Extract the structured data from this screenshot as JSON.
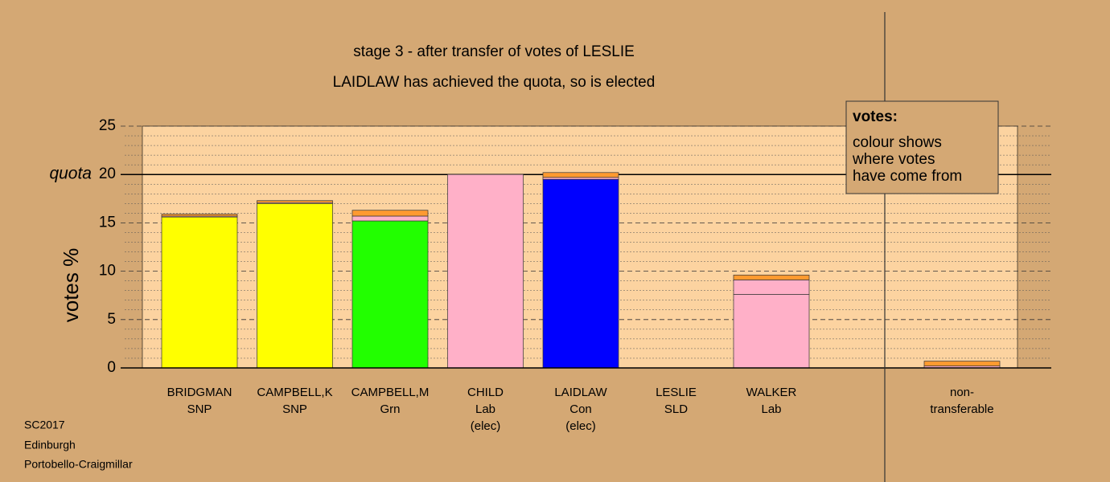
{
  "chart_data": {
    "type": "stacked_bar",
    "title": "stage 3 - after transfer of votes of LESLIE",
    "subtitle": "LAIDLAW has achieved the quota, so is elected",
    "y_label": "votes %",
    "categories": [
      [
        "BRIDGMAN",
        "SNP"
      ],
      [
        "CAMPBELL,K",
        "SNP"
      ],
      [
        "CAMPBELL,M",
        "Grn"
      ],
      [
        "CHILD",
        "Lab",
        "(elec)"
      ],
      [
        "LAIDLAW",
        "Con",
        "(elec)"
      ],
      [
        "LESLIE",
        "SLD"
      ],
      [
        "WALKER",
        "Lab"
      ],
      [
        "non-",
        "transferable"
      ]
    ],
    "series": [
      {
        "colors": [
          "#ffff00",
          "#ffff00",
          "#22ff00",
          "#ffb0c8",
          "#0000ff",
          "#ff9a30",
          "#ffb0c8",
          "#ffb0c8"
        ],
        "values": [
          15.6,
          17.0,
          15.2,
          20.0,
          19.5,
          0,
          7.6,
          0.2
        ]
      },
      {
        "color": "#ffb0c8",
        "values": [
          0.1,
          0.1,
          0.5,
          0,
          0.2,
          0,
          1.5,
          0
        ]
      },
      {
        "color": "#ff9a30",
        "values": [
          0.2,
          0.2,
          0.6,
          0,
          0.5,
          0,
          0.5,
          0.5
        ]
      }
    ],
    "ylim": [
      0,
      25
    ],
    "yticks": [
      0,
      5,
      10,
      15,
      20,
      25
    ],
    "quota": {
      "value": 20,
      "label": "quota"
    },
    "legend": {
      "title": "votes:",
      "lines": [
        "colour shows",
        "where votes",
        "have come from"
      ]
    },
    "footer": [
      "SC2017",
      "Edinburgh",
      "Portobello-Craigmillar"
    ]
  }
}
